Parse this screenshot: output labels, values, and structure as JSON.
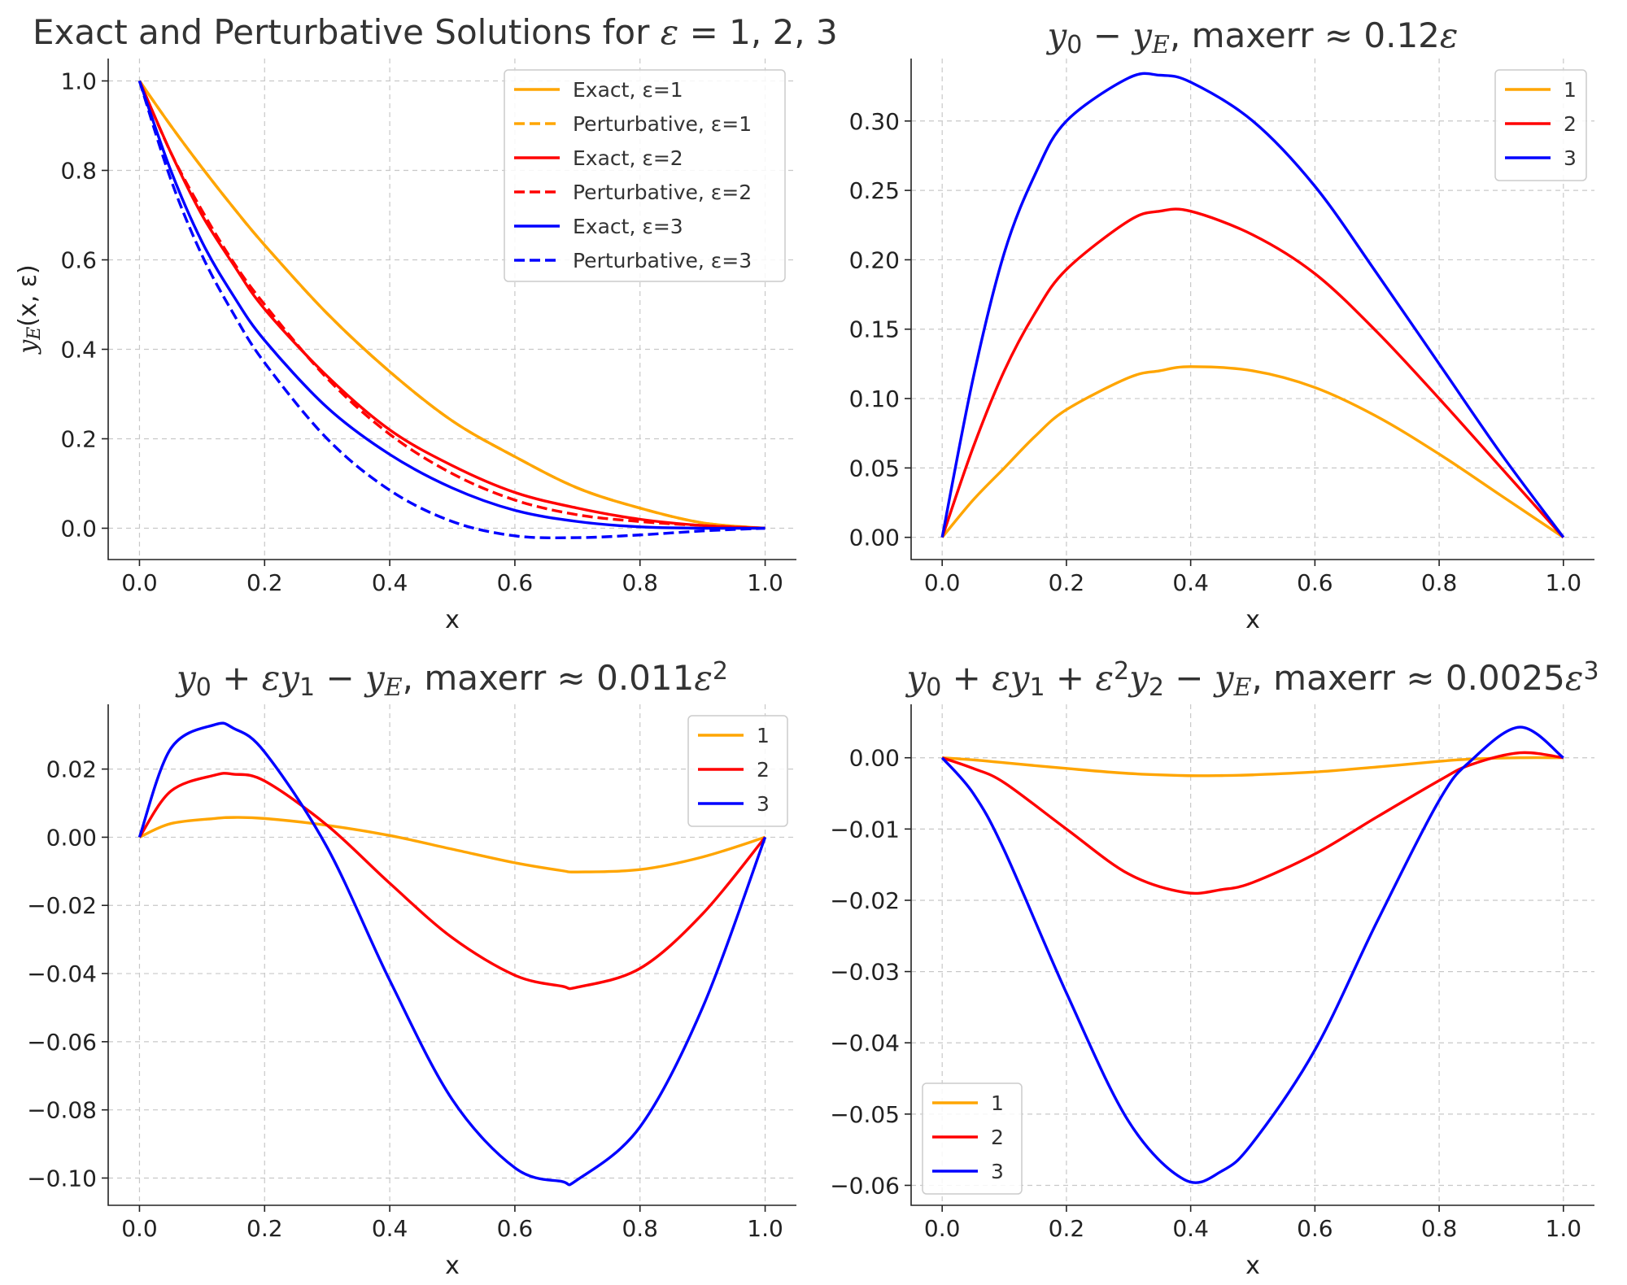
{
  "chart_data": [
    {
      "type": "line",
      "title_parts": [
        {
          "text": "Exact and Perturbative Solutions for ",
          "style": "normal"
        },
        {
          "text": "ε",
          "style": "math"
        },
        {
          "text": " = 1, 2, 3",
          "style": "normal"
        }
      ],
      "xlabel": "x",
      "ylabel": "y_E(x, ε)",
      "xlim": [
        -0.05,
        1.05
      ],
      "ylim": [
        -0.07,
        1.05
      ],
      "xticks": [
        0.0,
        0.2,
        0.4,
        0.6,
        0.8,
        1.0
      ],
      "yticks": [
        0.0,
        0.2,
        0.4,
        0.6,
        0.8,
        1.0
      ],
      "xtick_labels": [
        "0.0",
        "0.2",
        "0.4",
        "0.6",
        "0.8",
        "1.0"
      ],
      "ytick_labels": [
        "0.0",
        "0.2",
        "0.4",
        "0.6",
        "0.8",
        "1.0"
      ],
      "grid": true,
      "legend_position": "top-right",
      "x": [
        0.0,
        0.05,
        0.1,
        0.15,
        0.2,
        0.3,
        0.4,
        0.5,
        0.6,
        0.7,
        0.8,
        0.9,
        1.0
      ],
      "series": [
        {
          "name": "Exact, ε=1",
          "color": "#FFA500",
          "dash": "solid",
          "values": [
            1.0,
            0.9,
            0.806,
            0.717,
            0.633,
            0.48,
            0.35,
            0.24,
            0.16,
            0.09,
            0.045,
            0.012,
            0.0
          ]
        },
        {
          "name": "Perturbative, ε=1",
          "color": "#FFA500",
          "dash": "dashed",
          "values": [
            1.0,
            0.9,
            0.806,
            0.717,
            0.633,
            0.48,
            0.35,
            0.24,
            0.16,
            0.09,
            0.045,
            0.012,
            0.0
          ]
        },
        {
          "name": "Exact, ε=2",
          "color": "#FF0000",
          "dash": "solid",
          "values": [
            1.0,
            0.84,
            0.7,
            0.59,
            0.49,
            0.34,
            0.22,
            0.14,
            0.08,
            0.045,
            0.02,
            0.006,
            0.0
          ]
        },
        {
          "name": "Perturbative, ε=2",
          "color": "#FF0000",
          "dash": "dashed",
          "values": [
            1.0,
            0.84,
            0.71,
            0.595,
            0.5,
            0.335,
            0.21,
            0.122,
            0.063,
            0.03,
            0.015,
            0.006,
            0.0
          ]
        },
        {
          "name": "Exact, ε=3",
          "color": "#0000FF",
          "dash": "solid",
          "values": [
            1.0,
            0.8,
            0.64,
            0.52,
            0.42,
            0.27,
            0.165,
            0.09,
            0.04,
            0.015,
            0.003,
            0.0,
            0.0
          ]
        },
        {
          "name": "Perturbative, ε=3",
          "color": "#0000FF",
          "dash": "dashed",
          "values": [
            1.0,
            0.78,
            0.61,
            0.48,
            0.37,
            0.2,
            0.085,
            0.015,
            -0.017,
            -0.021,
            -0.015,
            -0.006,
            0.0
          ]
        }
      ]
    },
    {
      "type": "line",
      "title_parts": [
        {
          "text": "y",
          "style": "math"
        },
        {
          "text": "0",
          "style": "sub"
        },
        {
          "text": " − ",
          "style": "normal"
        },
        {
          "text": "y",
          "style": "math"
        },
        {
          "text": "E",
          "style": "submath"
        },
        {
          "text": ", maxerr  ≈ 0.12",
          "style": "normal"
        },
        {
          "text": "ε",
          "style": "math"
        }
      ],
      "xlabel": "x",
      "ylabel": "",
      "xlim": [
        -0.05,
        1.05
      ],
      "ylim": [
        -0.016,
        0.345
      ],
      "xticks": [
        0.0,
        0.2,
        0.4,
        0.6,
        0.8,
        1.0
      ],
      "yticks": [
        0.0,
        0.05,
        0.1,
        0.15,
        0.2,
        0.25,
        0.3
      ],
      "xtick_labels": [
        "0.0",
        "0.2",
        "0.4",
        "0.6",
        "0.8",
        "1.0"
      ],
      "ytick_labels": [
        "0.00",
        "0.05",
        "0.10",
        "0.15",
        "0.20",
        "0.25",
        "0.30"
      ],
      "grid": true,
      "legend_position": "top-right",
      "x": [
        0.0,
        0.05,
        0.1,
        0.15,
        0.2,
        0.3,
        0.35,
        0.4,
        0.5,
        0.6,
        0.7,
        0.8,
        0.9,
        1.0
      ],
      "series": [
        {
          "name": "1",
          "color": "#FFA500",
          "dash": "solid",
          "values": [
            0.0,
            0.027,
            0.05,
            0.073,
            0.092,
            0.115,
            0.12,
            0.123,
            0.12,
            0.108,
            0.087,
            0.06,
            0.03,
            0.0
          ]
        },
        {
          "name": "2",
          "color": "#FF0000",
          "dash": "solid",
          "values": [
            0.0,
            0.065,
            0.12,
            0.162,
            0.193,
            0.228,
            0.235,
            0.235,
            0.218,
            0.19,
            0.148,
            0.1,
            0.05,
            0.0
          ]
        },
        {
          "name": "3",
          "color": "#0000FF",
          "dash": "solid",
          "values": [
            0.0,
            0.115,
            0.205,
            0.262,
            0.3,
            0.331,
            0.333,
            0.328,
            0.3,
            0.253,
            0.19,
            0.125,
            0.06,
            0.0
          ]
        }
      ]
    },
    {
      "type": "line",
      "title_parts": [
        {
          "text": "y",
          "style": "math"
        },
        {
          "text": "0",
          "style": "sub"
        },
        {
          "text": " + ",
          "style": "normal"
        },
        {
          "text": "εy",
          "style": "math"
        },
        {
          "text": "1",
          "style": "sub"
        },
        {
          "text": " − ",
          "style": "normal"
        },
        {
          "text": "y",
          "style": "math"
        },
        {
          "text": "E",
          "style": "submath"
        },
        {
          "text": ", maxerr  ≈ 0.011",
          "style": "normal"
        },
        {
          "text": "ε",
          "style": "math"
        },
        {
          "text": "2",
          "style": "sup"
        }
      ],
      "xlabel": "x",
      "ylabel": "",
      "xlim": [
        -0.05,
        1.05
      ],
      "ylim": [
        -0.108,
        0.039
      ],
      "xticks": [
        0.0,
        0.2,
        0.4,
        0.6,
        0.8,
        1.0
      ],
      "yticks": [
        -0.1,
        -0.08,
        -0.06,
        -0.04,
        -0.02,
        0.0,
        0.02
      ],
      "xtick_labels": [
        "0.0",
        "0.2",
        "0.4",
        "0.6",
        "0.8",
        "1.0"
      ],
      "ytick_labels": [
        "−0.10",
        "−0.08",
        "−0.06",
        "−0.04",
        "−0.02",
        "0.00",
        "0.02"
      ],
      "grid": true,
      "legend_position": "top-right",
      "x": [
        0.0,
        0.05,
        0.12,
        0.15,
        0.2,
        0.3,
        0.4,
        0.5,
        0.6,
        0.675,
        0.7,
        0.8,
        0.9,
        1.0
      ],
      "series": [
        {
          "name": "1",
          "color": "#FFA500",
          "dash": "solid",
          "values": [
            0.0,
            0.004,
            0.0055,
            0.0058,
            0.0055,
            0.0035,
            0.0005,
            -0.0035,
            -0.0075,
            -0.0098,
            -0.0102,
            -0.0095,
            -0.0058,
            0.0
          ]
        },
        {
          "name": "2",
          "color": "#FF0000",
          "dash": "solid",
          "values": [
            0.0,
            0.0135,
            0.0182,
            0.0185,
            0.0165,
            0.0035,
            -0.0135,
            -0.0295,
            -0.0405,
            -0.0437,
            -0.044,
            -0.0385,
            -0.0225,
            0.0
          ]
        },
        {
          "name": "3",
          "color": "#0000FF",
          "dash": "solid",
          "values": [
            0.0,
            0.026,
            0.033,
            0.032,
            0.025,
            -0.003,
            -0.042,
            -0.077,
            -0.097,
            -0.101,
            -0.1005,
            -0.085,
            -0.05,
            0.0
          ]
        }
      ]
    },
    {
      "type": "line",
      "title_parts": [
        {
          "text": "y",
          "style": "math"
        },
        {
          "text": "0",
          "style": "sub"
        },
        {
          "text": " + ",
          "style": "normal"
        },
        {
          "text": "εy",
          "style": "math"
        },
        {
          "text": "1",
          "style": "sub"
        },
        {
          "text": " + ",
          "style": "normal"
        },
        {
          "text": "ε",
          "style": "math"
        },
        {
          "text": "2",
          "style": "sup"
        },
        {
          "text": "y",
          "style": "math"
        },
        {
          "text": "2",
          "style": "sub"
        },
        {
          "text": " − ",
          "style": "normal"
        },
        {
          "text": "y",
          "style": "math"
        },
        {
          "text": "E",
          "style": "submath"
        },
        {
          "text": ", maxerr  ≈ 0.0025",
          "style": "normal"
        },
        {
          "text": "ε",
          "style": "math"
        },
        {
          "text": "3",
          "style": "sup"
        }
      ],
      "xlabel": "x",
      "ylabel": "",
      "xlim": [
        -0.05,
        1.05
      ],
      "ylim": [
        -0.0628,
        0.0075
      ],
      "xticks": [
        0.0,
        0.2,
        0.4,
        0.6,
        0.8,
        1.0
      ],
      "yticks": [
        -0.06,
        -0.05,
        -0.04,
        -0.03,
        -0.02,
        -0.01,
        0.0
      ],
      "xtick_labels": [
        "0.0",
        "0.2",
        "0.4",
        "0.6",
        "0.8",
        "1.0"
      ],
      "ytick_labels": [
        "−0.06",
        "−0.05",
        "−0.04",
        "−0.03",
        "−0.02",
        "−0.01",
        "0.00"
      ],
      "grid": true,
      "legend_position": "bottom-left",
      "x": [
        0.0,
        0.05,
        0.1,
        0.2,
        0.3,
        0.39,
        0.45,
        0.5,
        0.6,
        0.7,
        0.8,
        0.85,
        0.93,
        1.0
      ],
      "series": [
        {
          "name": "1",
          "color": "#FFA500",
          "dash": "solid",
          "values": [
            0.0,
            -0.0003,
            -0.0007,
            -0.0015,
            -0.0022,
            -0.0025,
            -0.0025,
            -0.0024,
            -0.002,
            -0.0013,
            -0.0005,
            -0.0002,
            0.0,
            0.0
          ]
        },
        {
          "name": "2",
          "color": "#FF0000",
          "dash": "solid",
          "values": [
            0.0,
            -0.0015,
            -0.0035,
            -0.01,
            -0.0163,
            -0.0189,
            -0.0185,
            -0.0175,
            -0.0135,
            -0.0083,
            -0.0032,
            -0.001,
            0.0007,
            0.0
          ]
        },
        {
          "name": "3",
          "color": "#0000FF",
          "dash": "solid",
          "values": [
            0.0,
            -0.005,
            -0.013,
            -0.033,
            -0.051,
            -0.0592,
            -0.058,
            -0.054,
            -0.041,
            -0.023,
            -0.006,
            -0.0005,
            0.0043,
            0.0
          ]
        }
      ]
    }
  ]
}
